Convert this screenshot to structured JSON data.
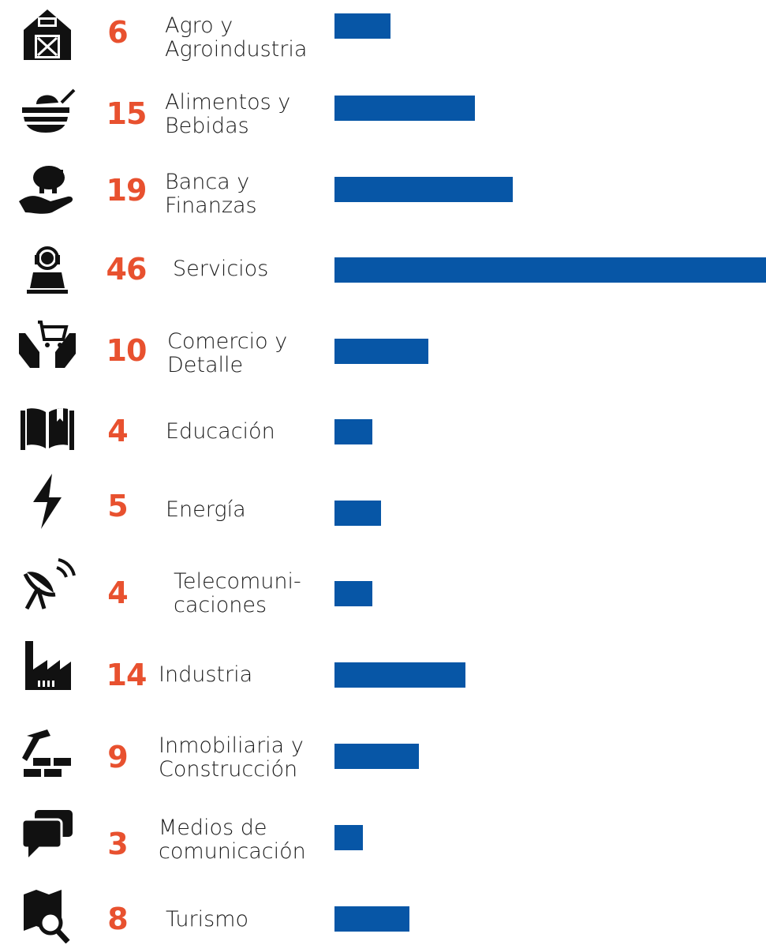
{
  "chart_data": {
    "type": "bar",
    "orientation": "horizontal",
    "categories": [
      "Agro y\nAgroindustria",
      "Alimentos y\nBebidas",
      "Banca y\nFinanzas",
      "Servicios",
      "Comercio y\nDetalle",
      "Educación",
      "Energía",
      "Telecomuni-\ncaciones",
      "Industria",
      "Inmobiliaria y\nConstrucción",
      "Medios de\ncomunicación",
      "Turismo"
    ],
    "values": [
      6,
      15,
      19,
      46,
      10,
      4,
      5,
      4,
      14,
      9,
      3,
      8
    ],
    "icons": [
      "barn-icon",
      "food-bowl-icon",
      "piggy-bank-hand-icon",
      "customer-service-icon",
      "cart-hands-icon",
      "book-icon",
      "lightning-icon",
      "satellite-dish-icon",
      "factory-icon",
      "hammer-bricks-icon",
      "chat-bubbles-icon",
      "map-search-icon"
    ],
    "bar_color": "#0756a6",
    "value_color": "#e8512f",
    "xlim": [
      0,
      46
    ],
    "grid": false
  }
}
